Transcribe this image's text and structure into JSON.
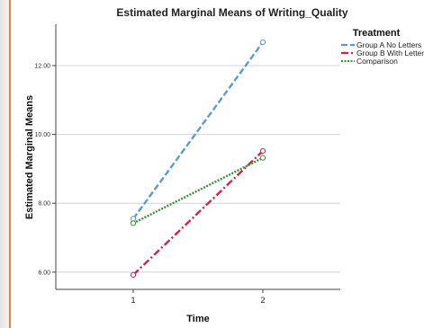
{
  "chart_data": {
    "type": "line",
    "title": "Estimated Marginal Means of Writing_Quality",
    "xlabel": "Time",
    "ylabel": "Estimated Marginal Means",
    "categories": [
      "1",
      "2"
    ],
    "ylim": [
      5.5,
      13.2
    ],
    "yticks": [
      {
        "value": 6,
        "label": "6.00"
      },
      {
        "value": 8,
        "label": "8.00"
      },
      {
        "value": 10,
        "label": "10.00"
      },
      {
        "value": 12,
        "label": "12.00"
      }
    ],
    "grid": "horizontal",
    "legend": {
      "title": "Treatment",
      "placement": "top-right"
    },
    "series": [
      {
        "name": "Group A No Letters",
        "values": [
          7.55,
          12.68
        ],
        "color": "#5b9bd5",
        "dash": "dashed"
      },
      {
        "name": "Group B With Letters",
        "values": [
          5.92,
          9.52
        ],
        "color": "#d6204b",
        "dash": "dash-dot"
      },
      {
        "name": "Comparison",
        "values": [
          7.42,
          9.32
        ],
        "color": "#3b8f3b",
        "dash": "dotted"
      }
    ]
  }
}
